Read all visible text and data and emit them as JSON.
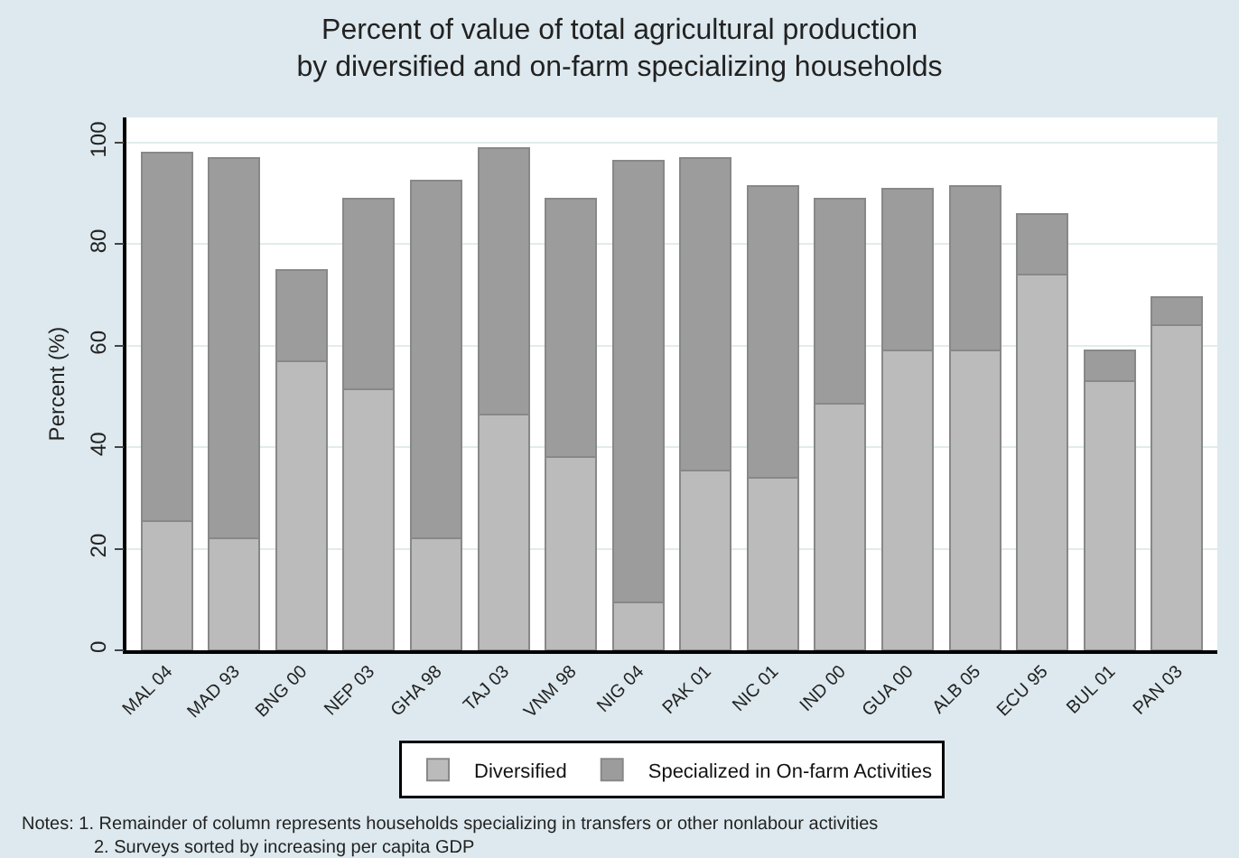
{
  "chart_data": {
    "type": "bar",
    "title": "Percent of value of total agricultural production\nby diversified and on-farm specializing households",
    "ylabel": "Percent (%)",
    "categories": [
      "MAL 04",
      "MAD 93",
      "BNG 00",
      "NEP 03",
      "GHA 98",
      "TAJ 03",
      "VNM 98",
      "NIG 04",
      "PAK 01",
      "NIC 01",
      "IND 00",
      "GUA 00",
      "ALB 05",
      "ECU 95",
      "BUL 01",
      "PAN 03"
    ],
    "stacked": true,
    "series": [
      {
        "name": "Diversified",
        "color": "#bbbbbb",
        "values": [
          25.5,
          22,
          57,
          51.5,
          22,
          46.5,
          38,
          9.5,
          35.5,
          34,
          48.5,
          59,
          59,
          74,
          53,
          64
        ]
      },
      {
        "name": "Specialized in On-farm Activities",
        "color": "#9c9c9c",
        "values": [
          72.5,
          75,
          18,
          37.5,
          70.5,
          52.5,
          51,
          87,
          61.5,
          57.5,
          40.5,
          32,
          32.5,
          12,
          6,
          5.5
        ]
      }
    ],
    "ylim": [
      0,
      105
    ],
    "yticks": [
      0,
      20,
      40,
      60,
      80,
      100
    ],
    "grid": "y",
    "legend": "bottom",
    "annotations": [
      "Notes: 1. Remainder of column represents households specializing in transfers or other nonlabour activities",
      "2. Surveys sorted by increasing per capita GDP"
    ]
  }
}
